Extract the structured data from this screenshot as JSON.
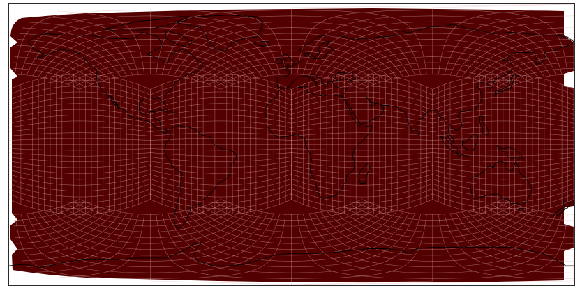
{
  "figure": {
    "kind": "global cubed-sphere grid plotted on an equirectangular world map",
    "fill_color": "#520000",
    "grid_line_color": "#e8b4b4",
    "coastline_color": "#000000",
    "background_color": "#ffffff",
    "frame_color": "#2b2b2b"
  },
  "map": {
    "projection": "equirectangular",
    "lon_range": [
      -180,
      180
    ],
    "lat_range": [
      -90,
      90
    ],
    "grid": {
      "panels": 6,
      "equatorial_panel_count": 4,
      "cells_per_panel_edge": 24,
      "visible": true
    },
    "coastlines": true
  }
}
